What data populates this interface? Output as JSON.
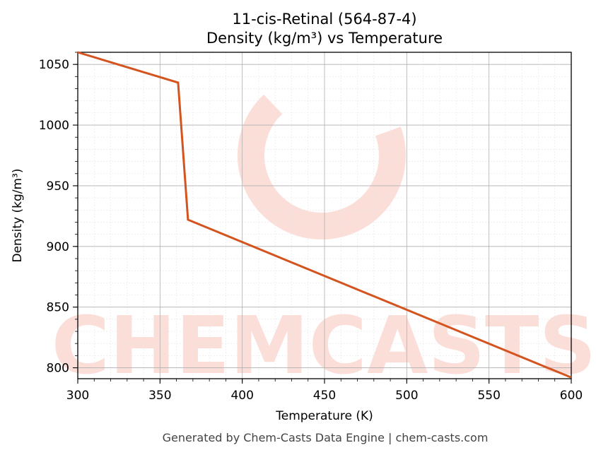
{
  "chart_data": {
    "type": "line",
    "title_line1": "11-cis-Retinal (564-87-4)",
    "title_line2": "Density (kg/m³) vs Temperature",
    "xlabel": "Temperature (K)",
    "ylabel": "Density (kg/m³)",
    "xlim": [
      300,
      600
    ],
    "ylim": [
      791,
      1060
    ],
    "xticks": [
      "300",
      "350",
      "400",
      "450",
      "500",
      "550",
      "600"
    ],
    "yticks": [
      "800",
      "850",
      "900",
      "950",
      "1000",
      "1050"
    ],
    "grid": true,
    "series": [
      {
        "color": "#d4541f",
        "x": [
          300,
          361,
          367,
          600
        ],
        "y": [
          1060,
          1035,
          922,
          792
        ]
      }
    ]
  },
  "watermark": {
    "text": "CHEMCASTS",
    "color": "#fcd9d2"
  },
  "footer": "Generated by Chem-Casts Data Engine | chem-casts.com"
}
